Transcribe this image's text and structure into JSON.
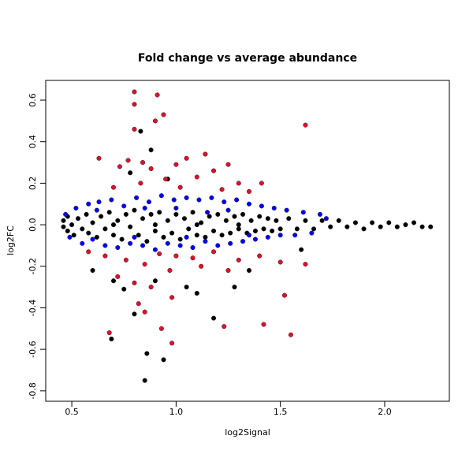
{
  "chart_data": {
    "type": "scatter",
    "title": "Fold change vs average abundance",
    "x_label": "log2Signal",
    "y_label": "log2FC",
    "xlim": [
      0.375,
      2.31
    ],
    "ylim": [
      -0.85,
      0.695
    ],
    "xticks": [
      0.5,
      {
        "value": 1,
        "label": "1.0"
      },
      1.5,
      {
        "value": 2,
        "label": "2.0"
      }
    ],
    "yticks": [
      -0.8,
      -0.6,
      -0.4,
      -0.2,
      {
        "value": 0,
        "label": "0.0"
      },
      0.2,
      0.4,
      0.6
    ],
    "grid": false,
    "series": [
      {
        "color": "#000000",
        "x": [
          0.46,
          0.46,
          0.48,
          0.48,
          0.5,
          0.51,
          0.53,
          0.55,
          0.57,
          0.58,
          0.6,
          0.62,
          0.64,
          0.66,
          0.68,
          0.7,
          0.72,
          0.74,
          0.76,
          0.78,
          0.8,
          0.82,
          0.84,
          0.86,
          0.88,
          0.9,
          0.92,
          0.94,
          0.96,
          0.98,
          1.0,
          1.02,
          1.04,
          1.06,
          1.08,
          1.1,
          1.12,
          1.14,
          1.16,
          1.18,
          1.2,
          1.22,
          1.24,
          1.26,
          1.28,
          1.3,
          1.32,
          1.34,
          1.36,
          1.38,
          1.4,
          1.42,
          1.44,
          1.46,
          1.48,
          1.5,
          1.54,
          1.58,
          1.62,
          1.66,
          1.7,
          1.74,
          1.78,
          1.82,
          1.86,
          1.9,
          1.94,
          1.98,
          2.02,
          2.06,
          2.1,
          2.14,
          2.18,
          2.22,
          0.7,
          0.9,
          1.1,
          1.3,
          0.83,
          0.88,
          0.78,
          0.96,
          0.6,
          0.7,
          0.75,
          0.8,
          0.86,
          0.94,
          0.85,
          0.69,
          0.9,
          1.05,
          1.18,
          1.28,
          1.1,
          1.35,
          1.6
        ],
        "values": [
          0.02,
          -0.01,
          0.04,
          -0.03,
          0.0,
          -0.05,
          0.03,
          -0.02,
          0.05,
          -0.04,
          0.01,
          -0.06,
          0.04,
          -0.02,
          0.06,
          -0.05,
          0.02,
          -0.07,
          0.05,
          -0.01,
          0.07,
          -0.05,
          0.03,
          -0.08,
          0.05,
          -0.03,
          0.06,
          -0.06,
          0.02,
          -0.04,
          0.05,
          -0.07,
          0.03,
          -0.02,
          0.06,
          -0.05,
          0.01,
          -0.06,
          0.04,
          -0.03,
          0.05,
          -0.05,
          0.02,
          -0.04,
          0.04,
          -0.02,
          0.05,
          -0.04,
          0.02,
          -0.03,
          0.04,
          -0.02,
          0.03,
          -0.03,
          0.02,
          -0.02,
          0.03,
          -0.02,
          0.02,
          -0.02,
          0.02,
          -0.01,
          0.02,
          -0.01,
          0.01,
          -0.02,
          0.01,
          -0.01,
          0.01,
          -0.01,
          0.0,
          0.01,
          -0.01,
          -0.01,
          0.0,
          0.0,
          0.0,
          0.0,
          0.45,
          0.36,
          0.25,
          0.22,
          -0.22,
          -0.27,
          -0.31,
          -0.43,
          -0.62,
          -0.65,
          -0.75,
          -0.55,
          -0.27,
          -0.3,
          -0.45,
          -0.3,
          -0.33,
          -0.22,
          -0.12
        ]
      },
      {
        "color": "#0000ff",
        "x": [
          0.47,
          0.49,
          0.52,
          0.55,
          0.58,
          0.6,
          0.63,
          0.66,
          0.69,
          0.72,
          0.75,
          0.78,
          0.81,
          0.84,
          0.87,
          0.9,
          0.93,
          0.96,
          0.99,
          1.02,
          1.05,
          1.08,
          1.11,
          1.14,
          1.17,
          1.2,
          1.23,
          1.26,
          1.29,
          1.32,
          1.35,
          1.38,
          1.41,
          1.44,
          1.47,
          1.5,
          1.53,
          1.57,
          1.61,
          1.65,
          1.69,
          1.72,
          0.62,
          0.85,
          1.0,
          1.15,
          1.25,
          0.8,
          1.05,
          1.35
        ],
        "values": [
          0.05,
          -0.06,
          0.08,
          -0.09,
          0.1,
          -0.07,
          0.11,
          -0.1,
          0.12,
          -0.11,
          0.09,
          -0.09,
          0.13,
          -0.1,
          0.11,
          -0.12,
          0.14,
          -0.09,
          0.12,
          -0.1,
          0.13,
          -0.11,
          0.12,
          -0.08,
          0.13,
          -0.1,
          0.11,
          -0.09,
          0.12,
          -0.08,
          0.1,
          -0.07,
          0.09,
          -0.06,
          0.08,
          -0.05,
          0.07,
          -0.05,
          0.06,
          -0.04,
          0.05,
          0.03,
          0.07,
          0.08,
          0.08,
          0.06,
          0.07,
          -0.06,
          -0.06,
          -0.05
        ]
      },
      {
        "color": "#e0102a",
        "x": [
          0.8,
          0.91,
          0.8,
          0.94,
          0.9,
          0.8,
          1.62,
          0.63,
          0.77,
          0.84,
          1.05,
          1.14,
          1.25,
          0.73,
          0.88,
          1.0,
          1.18,
          0.95,
          1.1,
          1.3,
          1.41,
          0.7,
          0.83,
          1.02,
          1.22,
          1.35,
          0.58,
          0.66,
          0.76,
          0.85,
          0.92,
          1.0,
          1.08,
          1.18,
          1.3,
          1.4,
          0.72,
          0.8,
          0.88,
          0.97,
          1.12,
          1.25,
          1.5,
          1.62,
          0.82,
          0.98,
          1.52,
          0.68,
          0.93,
          1.23,
          1.42,
          1.55,
          0.98,
          0.85
        ],
        "values": [
          0.64,
          0.625,
          0.58,
          0.53,
          0.5,
          0.46,
          0.48,
          0.32,
          0.31,
          0.3,
          0.32,
          0.34,
          0.29,
          0.28,
          0.27,
          0.29,
          0.26,
          0.22,
          0.23,
          0.2,
          0.2,
          0.18,
          0.2,
          0.18,
          0.17,
          0.16,
          -0.13,
          -0.15,
          -0.17,
          -0.19,
          -0.14,
          -0.15,
          -0.16,
          -0.13,
          -0.17,
          -0.15,
          -0.25,
          -0.28,
          -0.3,
          -0.22,
          -0.2,
          -0.22,
          -0.18,
          -0.19,
          -0.38,
          -0.35,
          -0.34,
          -0.52,
          -0.5,
          -0.49,
          -0.48,
          -0.53,
          -0.57,
          -0.42
        ]
      }
    ]
  }
}
